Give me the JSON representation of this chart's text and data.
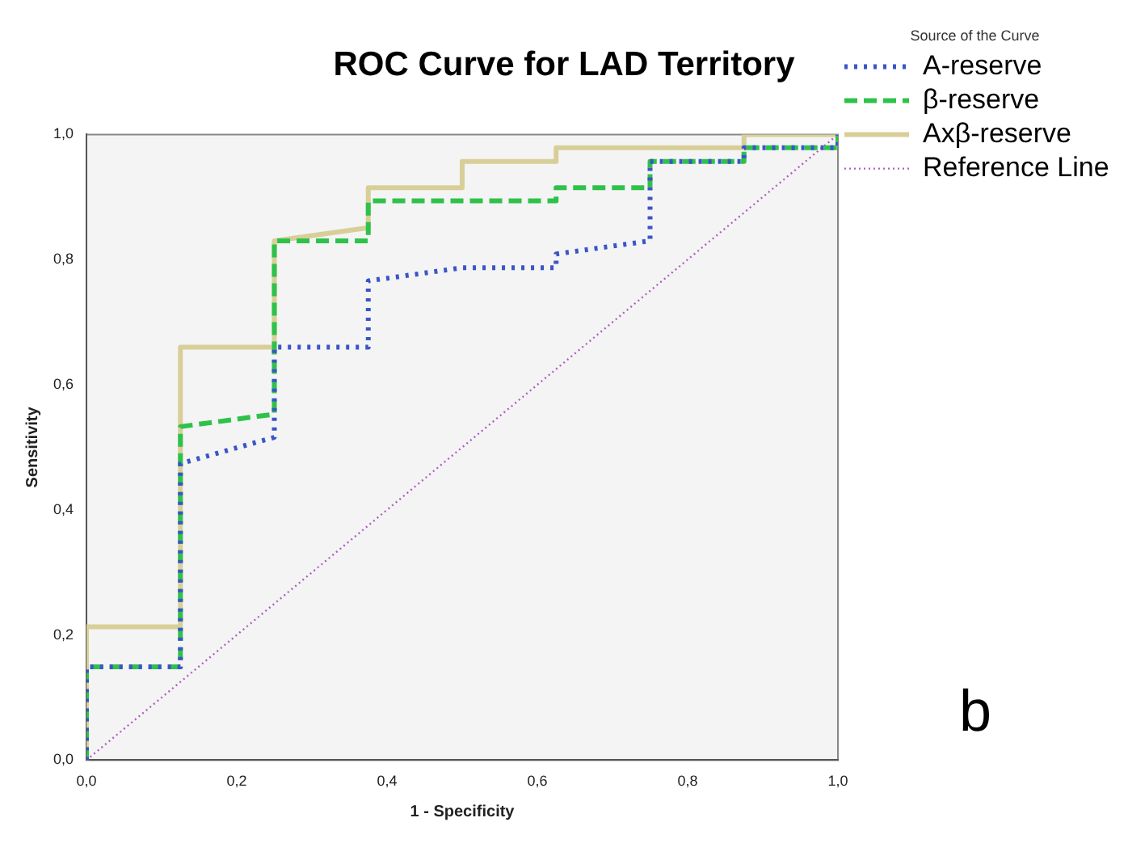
{
  "chart_data": {
    "type": "line",
    "title": "ROC Curve for LAD Territory",
    "xlabel": "1 - Specificity",
    "ylabel": "Sensitivity",
    "legend_title": "Source of the Curve",
    "legend": "right",
    "grid": false,
    "marker": "none",
    "xlim": [
      0,
      1
    ],
    "ylim": [
      0,
      1
    ],
    "xticks": [
      {
        "value": 0,
        "label": "0,0"
      },
      {
        "value": 0.2,
        "label": "0,2"
      },
      {
        "value": 0.4,
        "label": "0,4"
      },
      {
        "value": 0.6,
        "label": "0,6"
      },
      {
        "value": 0.8,
        "label": "0,8"
      },
      {
        "value": 1,
        "label": "1,0"
      }
    ],
    "yticks": [
      {
        "value": 0,
        "label": "0,0"
      },
      {
        "value": 0.2,
        "label": "0,2"
      },
      {
        "value": 0.4,
        "label": "0,4"
      },
      {
        "value": 0.6,
        "label": "0,6"
      },
      {
        "value": 0.8,
        "label": "0,8"
      },
      {
        "value": 1,
        "label": "1,0"
      }
    ],
    "series": [
      {
        "name": "A-reserve",
        "color": "#3a55c8",
        "line_style": "dotted",
        "x": [
          0,
          0,
          0.125,
          0.125,
          0.25,
          0.25,
          0.375,
          0.375,
          0.5,
          0.625,
          0.625,
          0.75,
          0.75,
          0.875,
          0.875,
          1,
          1
        ],
        "values": [
          0,
          0.149,
          0.149,
          0.474,
          0.516,
          0.66,
          0.66,
          0.766,
          0.787,
          0.787,
          0.809,
          0.83,
          0.957,
          0.957,
          0.979,
          0.979,
          1
        ]
      },
      {
        "name": "β-reserve",
        "color": "#2ec24a",
        "line_style": "dashed",
        "x": [
          0,
          0,
          0.125,
          0.125,
          0.25,
          0.25,
          0.375,
          0.375,
          0.625,
          0.625,
          0.75,
          0.75,
          0.875,
          0.875,
          1,
          1
        ],
        "values": [
          0,
          0.149,
          0.149,
          0.533,
          0.553,
          0.83,
          0.83,
          0.894,
          0.894,
          0.915,
          0.915,
          0.957,
          0.957,
          0.979,
          0.979,
          1
        ]
      },
      {
        "name": "Axβ-reserve",
        "color": "#d8cf98",
        "line_style": "solid",
        "x": [
          0,
          0,
          0.125,
          0.125,
          0.25,
          0.25,
          0.375,
          0.375,
          0.5,
          0.5,
          0.625,
          0.625,
          0.875,
          0.875,
          1
        ],
        "values": [
          0,
          0.213,
          0.213,
          0.66,
          0.66,
          0.83,
          0.851,
          0.915,
          0.915,
          0.957,
          0.957,
          0.979,
          0.979,
          1,
          1
        ]
      },
      {
        "name": "Reference Line",
        "color": "#b060c0",
        "line_style": "dotted",
        "x": [
          0,
          1
        ],
        "values": [
          0,
          1
        ]
      }
    ],
    "annotations": [
      "b"
    ]
  }
}
